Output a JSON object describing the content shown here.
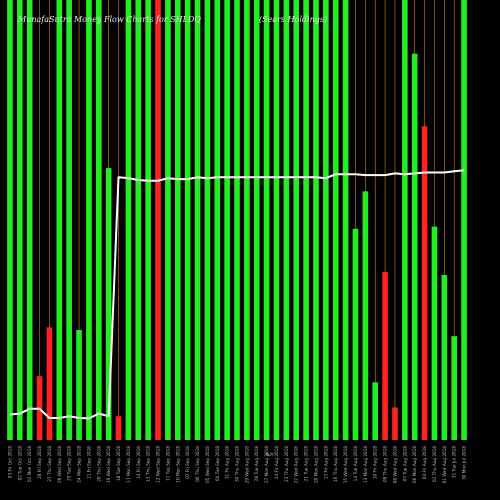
{
  "chart_data": {
    "type": "bar",
    "title_left": "MunafaSutra Money Flow Charts for SHLDQ",
    "title_right": "(Sears Holdings)",
    "center_label": "N/A",
    "colors": {
      "background": "#000000",
      "up": "#22ee22",
      "down": "#ff2222",
      "grid": "#c8862a",
      "line": "#ffffff"
    },
    "ylim": [
      0,
      100
    ],
    "categories": [
      "03 Fri Oct 2018",
      "02 Tue Oct 2018",
      "01 Mon Oct 2018",
      "28 Fri Sep 2018",
      "27 Thu Sep 2018",
      "26 Wed Sep 2018",
      "25 Tue Sep 2018",
      "24 Mon Sep 2018",
      "21 Fri Sep 2018",
      "20 Thu Sep 2018",
      "19 Wed Sep 2018",
      "18 Tue Sep 2018",
      "17 Mon Sep 2018",
      "14 Fri Sep 2018",
      "13 Thu Sep 2018",
      "12 Wed Sep 2018",
      "11 Tue Sep 2018",
      "10 Mon Sep 2018",
      "07 Fri Sep 2018",
      "06 Thu Sep 2018",
      "05 Wed Sep 2018",
      "04 Tue Sep 2018",
      "31 Fri Aug 2018",
      "30 Thu Aug 2018",
      "29 Wed Aug 2018",
      "28 Tue Aug 2018",
      "27 Mon Aug 2018",
      "24 Fri Aug 2018",
      "23 Thu Aug 2018",
      "22 Wed Aug 2018",
      "21 Tue Aug 2018",
      "20 Mon Aug 2018",
      "17 Fri Aug 2018",
      "16 Thu Aug 2018",
      "15 Wed Aug 2018",
      "14 Tue Aug 2018",
      "13 Mon Aug 2018",
      "10 Fri Aug 2018",
      "09 Thu Aug 2018",
      "08 Wed Aug 2018",
      "07 Tue Aug 2018",
      "06 Mon Aug 2018",
      "03 Fri Aug 2018",
      "02 Thu Aug 2018",
      "01 Wed Aug 2018",
      "31 Tue Jul 2018",
      "30 Mon Jul 2018"
    ],
    "bars": [
      {
        "v": 100,
        "c": "up"
      },
      {
        "v": 100,
        "c": "up"
      },
      {
        "v": 100,
        "c": "up"
      },
      {
        "v": 14.5,
        "c": "down"
      },
      {
        "v": 25.6,
        "c": "down"
      },
      {
        "v": 100,
        "c": "up"
      },
      {
        "v": 100,
        "c": "up"
      },
      {
        "v": 25.0,
        "c": "up"
      },
      {
        "v": 100,
        "c": "up"
      },
      {
        "v": 100,
        "c": "up"
      },
      {
        "v": 61.8,
        "c": "up"
      },
      {
        "v": 5.4,
        "c": "down"
      },
      {
        "v": 100,
        "c": "up"
      },
      {
        "v": 100,
        "c": "up"
      },
      {
        "v": 100,
        "c": "up"
      },
      {
        "v": 100,
        "c": "down"
      },
      {
        "v": 100,
        "c": "up"
      },
      {
        "v": 100,
        "c": "up"
      },
      {
        "v": 100,
        "c": "up"
      },
      {
        "v": 100,
        "c": "up"
      },
      {
        "v": 100,
        "c": "up"
      },
      {
        "v": 100,
        "c": "up"
      },
      {
        "v": 100,
        "c": "up"
      },
      {
        "v": 100,
        "c": "up"
      },
      {
        "v": 100,
        "c": "up"
      },
      {
        "v": 100,
        "c": "up"
      },
      {
        "v": 100,
        "c": "up"
      },
      {
        "v": 100,
        "c": "up"
      },
      {
        "v": 100,
        "c": "up"
      },
      {
        "v": 100,
        "c": "up"
      },
      {
        "v": 100,
        "c": "up"
      },
      {
        "v": 100,
        "c": "up"
      },
      {
        "v": 100,
        "c": "up"
      },
      {
        "v": 100,
        "c": "up"
      },
      {
        "v": 100,
        "c": "up"
      },
      {
        "v": 48.0,
        "c": "up"
      },
      {
        "v": 56.5,
        "c": "up"
      },
      {
        "v": 13.1,
        "c": "up"
      },
      {
        "v": 38.2,
        "c": "down"
      },
      {
        "v": 7.4,
        "c": "down"
      },
      {
        "v": 100,
        "c": "up"
      },
      {
        "v": 87.8,
        "c": "up"
      },
      {
        "v": 71.3,
        "c": "down"
      },
      {
        "v": 48.5,
        "c": "up"
      },
      {
        "v": 37.5,
        "c": "up"
      },
      {
        "v": 23.6,
        "c": "up"
      },
      {
        "v": 100,
        "c": "up"
      }
    ],
    "line": [
      5.8,
      6.0,
      7.1,
      7.1,
      5.0,
      5.0,
      5.4,
      5.0,
      4.9,
      6.0,
      5.4,
      59.7,
      59.5,
      59.1,
      58.9,
      58.9,
      59.5,
      59.3,
      59.3,
      59.7,
      59.5,
      59.7,
      59.7,
      59.7,
      59.7,
      59.7,
      59.7,
      59.7,
      59.7,
      59.7,
      59.7,
      59.7,
      59.5,
      60.4,
      60.4,
      60.4,
      60.2,
      60.2,
      60.2,
      60.6,
      60.4,
      60.6,
      60.8,
      60.8,
      60.8,
      61.1,
      61.3
    ]
  }
}
